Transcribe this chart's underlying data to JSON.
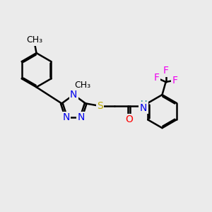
{
  "background_color": "#ebebeb",
  "bond_color": "#000000",
  "bond_width": 1.8,
  "figsize": [
    3.0,
    3.0
  ],
  "dpi": 100,
  "atom_colors": {
    "N": "#0000ee",
    "S": "#bbaa00",
    "O": "#ff0000",
    "F": "#ee00ee",
    "H": "#008888",
    "C": "#000000"
  },
  "font_size": 10,
  "font_size_cf3": 9,
  "font_size_methyl": 9
}
